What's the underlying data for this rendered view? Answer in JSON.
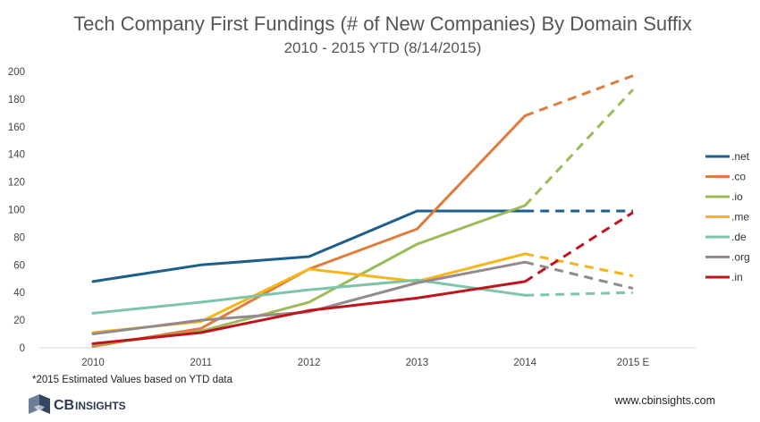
{
  "chart_data": {
    "type": "line",
    "title": "Tech Company First Fundings (# of New Companies) By Domain Suffix",
    "subtitle": "2010 - 2015 YTD (8/14/2015)",
    "categories": [
      "2010",
      "2011",
      "2012",
      "2013",
      "2014",
      "2015 E"
    ],
    "estimated_category": "2015 E",
    "ylim": [
      0,
      200
    ],
    "yticks": [
      0,
      20,
      40,
      60,
      80,
      100,
      120,
      140,
      160,
      180,
      200
    ],
    "xlabel": "",
    "ylabel": "",
    "grid": false,
    "legend_position": "right",
    "series": [
      {
        "name": ".net",
        "color": "#1c5f8a",
        "values": [
          48,
          60,
          66,
          99,
          99,
          99
        ]
      },
      {
        "name": ".co",
        "color": "#e07b39",
        "values": [
          1,
          14,
          57,
          86,
          168,
          197
        ]
      },
      {
        "name": ".io",
        "color": "#9bbb59",
        "values": [
          2,
          12,
          33,
          75,
          103,
          187
        ]
      },
      {
        "name": ".me",
        "color": "#f6b619",
        "values": [
          11,
          19,
          57,
          48,
          68,
          52
        ]
      },
      {
        "name": ".de",
        "color": "#7dc4a9",
        "values": [
          25,
          33,
          42,
          49,
          38,
          40
        ]
      },
      {
        "name": ".org",
        "color": "#948a8e",
        "values": [
          10,
          20,
          26,
          47,
          62,
          43
        ]
      },
      {
        "name": ".in",
        "color": "#c0141c",
        "values": [
          3,
          11,
          27,
          36,
          48,
          98
        ]
      }
    ]
  },
  "footnote": "*2015 Estimated Values based on YTD data",
  "source_url": "www.cbinsights.com",
  "logo": {
    "prefix": "CB",
    "suffix": "INSIGHTS"
  }
}
